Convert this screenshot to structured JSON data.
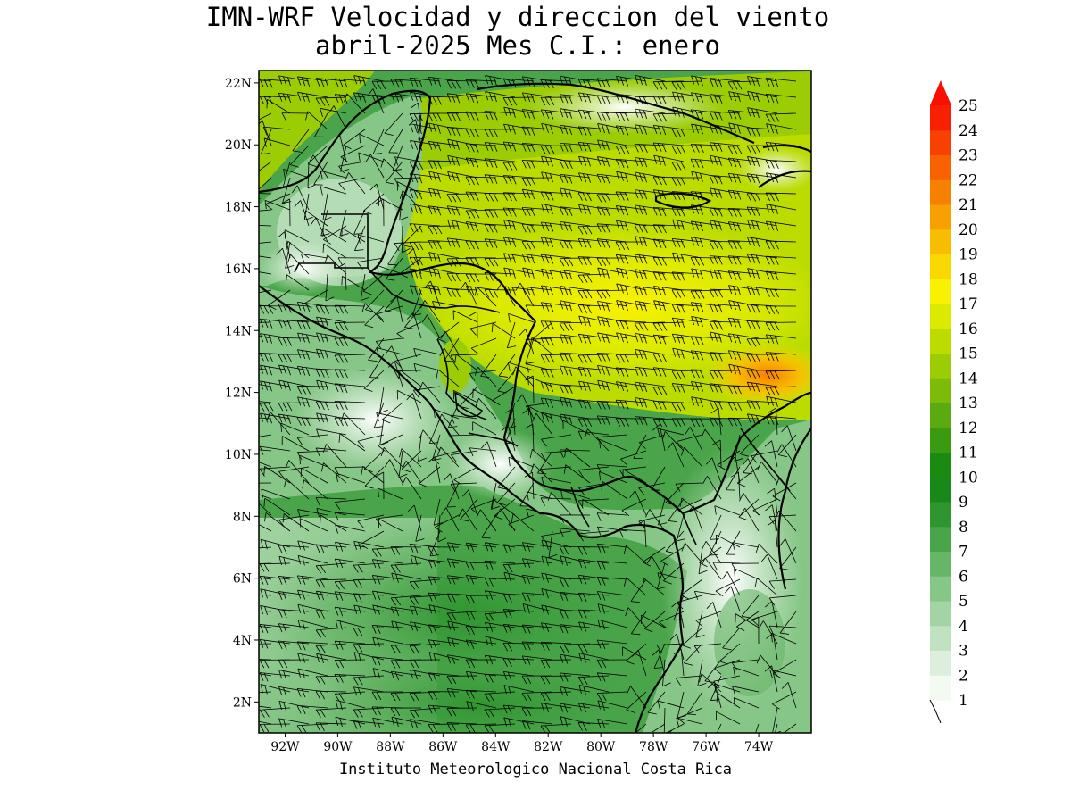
{
  "title": {
    "line1": "IMN-WRF Velocidad y direccion del viento",
    "line2": "abril-2025 Mes C.I.: enero"
  },
  "footer": "Instituto Meteorologico Nacional Costa Rica",
  "map": {
    "lon_range": [
      -93,
      -72
    ],
    "lat_range": [
      1,
      22.4
    ],
    "lat_labels": [
      "2N",
      "4N",
      "6N",
      "8N",
      "10N",
      "12N",
      "14N",
      "16N",
      "18N",
      "20N",
      "22N"
    ],
    "lat_values": [
      2,
      4,
      6,
      8,
      10,
      12,
      14,
      16,
      18,
      20,
      22
    ],
    "lon_labels": [
      "92W",
      "90W",
      "88W",
      "86W",
      "84W",
      "82W",
      "80W",
      "78W",
      "76W",
      "74W"
    ],
    "lon_values": [
      -92,
      -90,
      -88,
      -86,
      -84,
      -82,
      -80,
      -78,
      -76,
      -74
    ]
  },
  "colorbar": {
    "labels": [
      "1",
      "2",
      "3",
      "4",
      "5",
      "6",
      "7",
      "8",
      "9",
      "10",
      "11",
      "12",
      "13",
      "14",
      "15",
      "16",
      "17",
      "18",
      "19",
      "20",
      "21",
      "22",
      "23",
      "24",
      "25"
    ],
    "colors": [
      "#f2faf2",
      "#dcefdc",
      "#c0e2c0",
      "#a3d4a3",
      "#86c686",
      "#67b667",
      "#4aa54a",
      "#2f952f",
      "#188818",
      "#1a8a10",
      "#3a9a10",
      "#5aaa10",
      "#7cbb08",
      "#9ccc04",
      "#bcdc00",
      "#dcea00",
      "#f8f200",
      "#f8d800",
      "#f8bc00",
      "#f8a000",
      "#f88000",
      "#f86000",
      "#f84000",
      "#f82000"
    ],
    "arrow_color": "#f81000"
  }
}
